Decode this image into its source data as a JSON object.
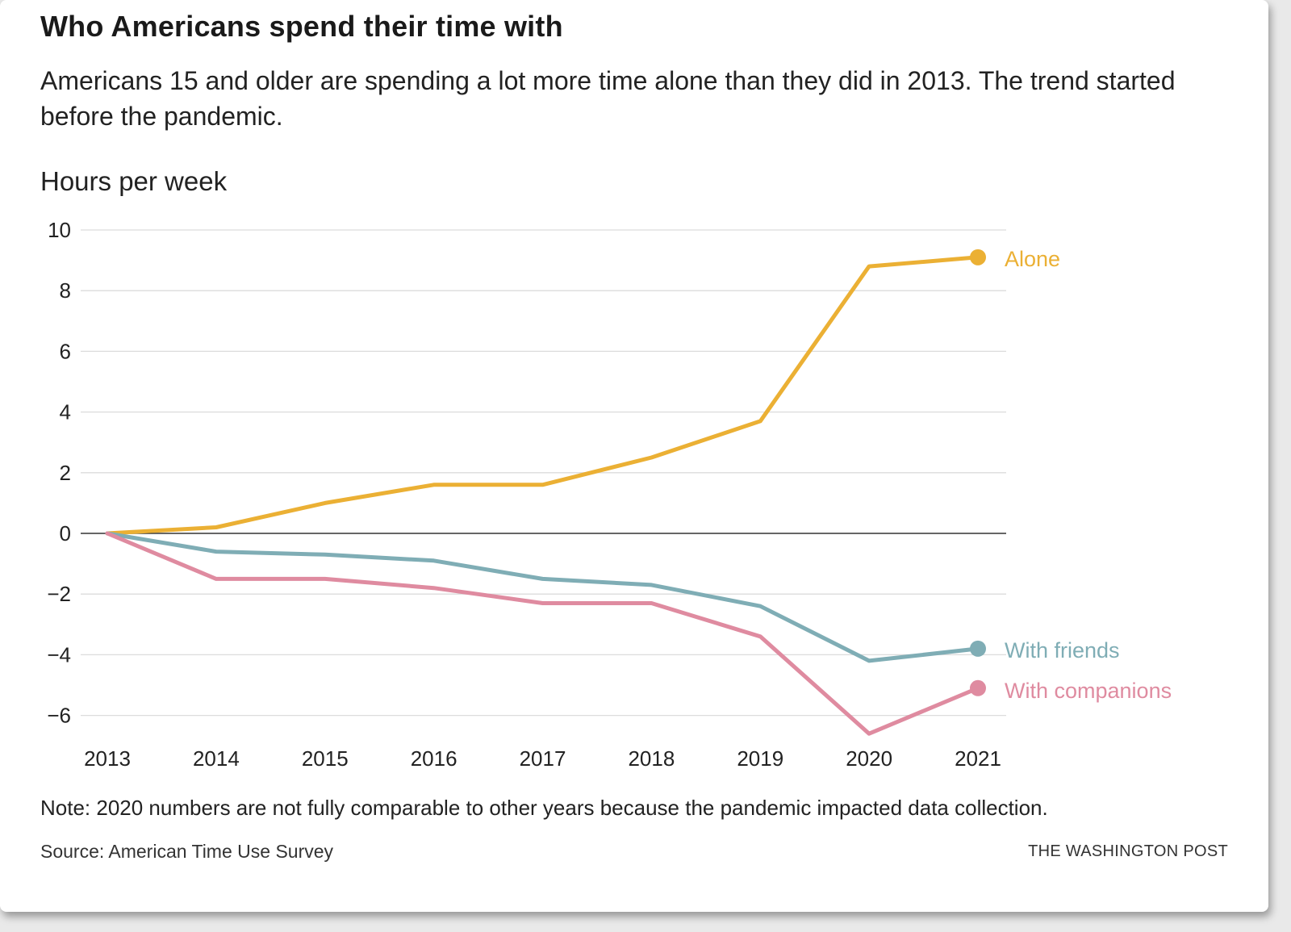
{
  "chart_data": {
    "type": "line",
    "title": "Who Americans spend their time with",
    "subtitle": "Americans 15 and older are spending a lot more time alone than they did in 2013. The trend started before the pandemic.",
    "ylabel": "Hours per week",
    "xlabel": "",
    "x": [
      "2013",
      "2014",
      "2015",
      "2016",
      "2017",
      "2018",
      "2019",
      "2020",
      "2021"
    ],
    "ylim": [
      -7,
      10
    ],
    "yticks": [
      10,
      8,
      6,
      4,
      2,
      0,
      -2,
      -4,
      -6
    ],
    "ytick_labels": [
      "10",
      "8",
      "6",
      "4",
      "2",
      "0",
      "−2",
      "−4",
      "−6"
    ],
    "grid": true,
    "legend": "end-of-line labels",
    "series": [
      {
        "name": "Alone",
        "color": "#ebb034",
        "values": [
          0,
          0.2,
          1.0,
          1.6,
          1.6,
          2.5,
          3.7,
          8.8,
          9.1
        ]
      },
      {
        "name": "With friends",
        "color": "#7fadb5",
        "values": [
          0,
          -0.6,
          -0.7,
          -0.9,
          -1.5,
          -1.7,
          -2.4,
          -4.2,
          -3.8
        ]
      },
      {
        "name": "With companions",
        "color": "#df8ba0",
        "values": [
          0,
          -1.5,
          -1.5,
          -1.8,
          -2.3,
          -2.3,
          -3.4,
          -6.6,
          -5.1
        ]
      }
    ]
  },
  "note": "Note: 2020 numbers are not fully comparable to other years because the pandemic impacted data collection.",
  "source": "Source: American Time Use Survey",
  "publisher": "THE WASHINGTON POST"
}
